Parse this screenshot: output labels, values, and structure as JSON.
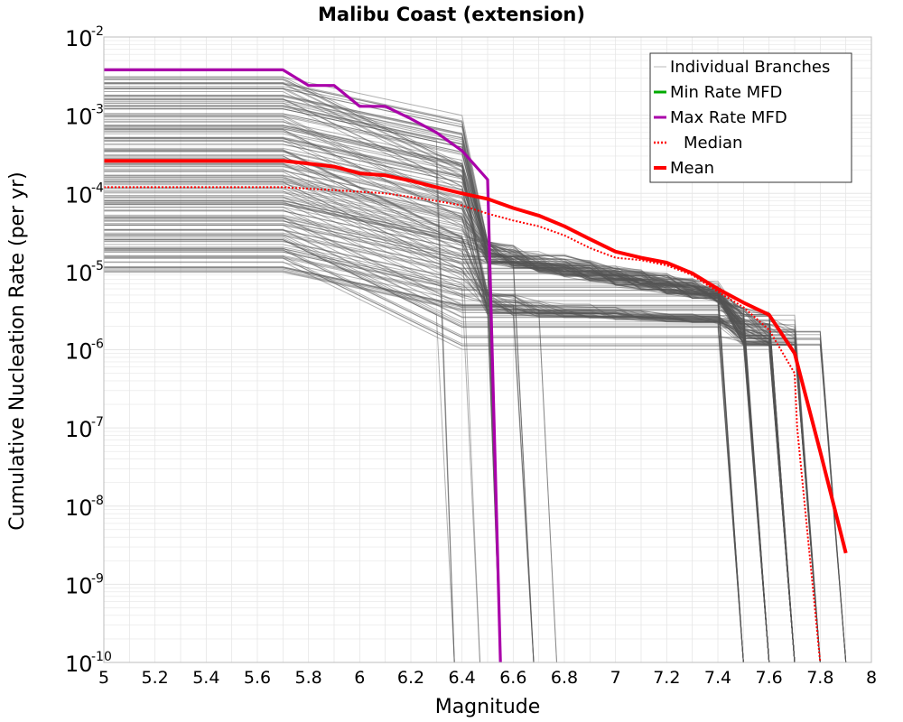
{
  "chart_data": {
    "type": "line",
    "title": "Malibu Coast (extension)",
    "xlabel": "Magnitude",
    "ylabel": "Cumulative Nucleation Rate (per yr)",
    "xlim": [
      5,
      8
    ],
    "ylim": [
      1e-10,
      0.01
    ],
    "y_scale": "log",
    "grid": true,
    "legend_position": "top-right",
    "x_ticks": [
      "5",
      "5.2",
      "5.4",
      "5.6",
      "5.8",
      "6",
      "6.2",
      "6.4",
      "6.6",
      "6.8",
      "7",
      "7.2",
      "7.4",
      "7.6",
      "7.8",
      "8"
    ],
    "y_ticks": [
      {
        "base": "10",
        "exp": "-10"
      },
      {
        "base": "10",
        "exp": "-9"
      },
      {
        "base": "10",
        "exp": "-8"
      },
      {
        "base": "10",
        "exp": "-7"
      },
      {
        "base": "10",
        "exp": "-6"
      },
      {
        "base": "10",
        "exp": "-5"
      },
      {
        "base": "10",
        "exp": "-4"
      },
      {
        "base": "10",
        "exp": "-3"
      },
      {
        "base": "10",
        "exp": "-2"
      }
    ],
    "colors": {
      "branches": "#555555",
      "min": "#00aa00",
      "max": "#aa00aa",
      "median": "#ff0000",
      "mean": "#ff0000",
      "grid": "#e6e6e6"
    },
    "legend": [
      {
        "label": "Individual Branches",
        "style": "branch"
      },
      {
        "label": "Min Rate MFD",
        "style": "min"
      },
      {
        "label": "Max Rate MFD",
        "style": "max"
      },
      {
        "label": "Median",
        "style": "median"
      },
      {
        "label": "Mean",
        "style": "mean"
      }
    ],
    "series": [
      {
        "name": "Max Rate MFD",
        "style": "max",
        "x": [
          5.0,
          5.7,
          5.8,
          5.9,
          6.0,
          6.1,
          6.2,
          6.3,
          6.4,
          6.5,
          6.55
        ],
        "y": [
          0.0038,
          0.0038,
          0.0024,
          0.0024,
          0.0013,
          0.0013,
          0.0009,
          0.0006,
          0.00035,
          0.00015,
          1e-10
        ]
      },
      {
        "name": "Median",
        "style": "median",
        "x": [
          5.0,
          5.7,
          5.9,
          6.0,
          6.1,
          6.2,
          6.3,
          6.4,
          6.5,
          6.6,
          6.7,
          6.8,
          6.9,
          7.0,
          7.1,
          7.2,
          7.3,
          7.4,
          7.5,
          7.6,
          7.7,
          7.71,
          7.8
        ],
        "y": [
          0.00012,
          0.00012,
          0.00011,
          0.000105,
          0.0001,
          9e-05,
          8e-05,
          7e-05,
          5.5e-05,
          4.5e-05,
          3.8e-05,
          2.9e-05,
          2e-05,
          1.5e-05,
          1.4e-05,
          1.2e-05,
          9e-06,
          5.5e-06,
          3.5e-06,
          1.8e-06,
          5e-07,
          1e-07,
          1e-10
        ]
      },
      {
        "name": "Mean",
        "style": "mean",
        "x": [
          5.0,
          5.7,
          5.8,
          5.9,
          6.0,
          6.1,
          6.2,
          6.3,
          6.4,
          6.5,
          6.6,
          6.7,
          6.8,
          6.9,
          7.0,
          7.1,
          7.2,
          7.3,
          7.4,
          7.5,
          7.6,
          7.7,
          7.8,
          7.9
        ],
        "y": [
          0.00026,
          0.00026,
          0.00024,
          0.00022,
          0.00018,
          0.00017,
          0.000145,
          0.00012,
          0.0001,
          8.5e-05,
          6.5e-05,
          5.2e-05,
          3.8e-05,
          2.6e-05,
          1.8e-05,
          1.5e-05,
          1.3e-05,
          9.5e-06,
          6e-06,
          4e-06,
          2.8e-06,
          9e-07,
          5e-08,
          2.5e-09
        ]
      }
    ]
  }
}
